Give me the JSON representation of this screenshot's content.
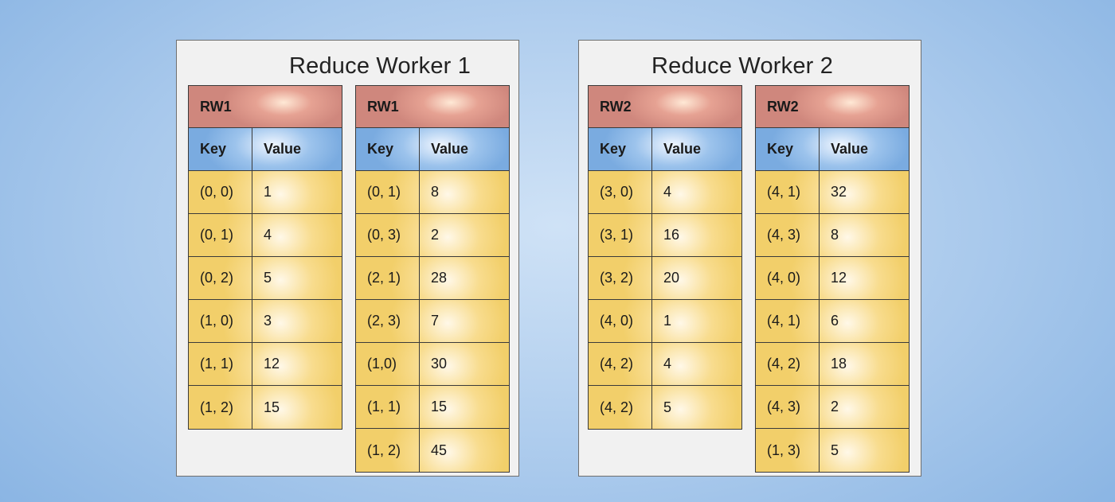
{
  "workers": [
    {
      "title": "Reduce Worker 1",
      "tables": [
        {
          "header": "RW1",
          "key_label": "Key",
          "value_label": "Value",
          "rows": [
            {
              "key": "(0, 0)",
              "value": "1"
            },
            {
              "key": "(0, 1)",
              "value": "4"
            },
            {
              "key": "(0, 2)",
              "value": "5"
            },
            {
              "key": "(1, 0)",
              "value": "3"
            },
            {
              "key": "(1, 1)",
              "value": "12"
            },
            {
              "key": "(1, 2)",
              "value": "15"
            }
          ]
        },
        {
          "header": "RW1",
          "key_label": "Key",
          "value_label": "Value",
          "rows": [
            {
              "key": "(0, 1)",
              "value": "8"
            },
            {
              "key": "(0, 3)",
              "value": "2"
            },
            {
              "key": "(2, 1)",
              "value": "28"
            },
            {
              "key": "(2, 3)",
              "value": "7"
            },
            {
              "key": "(1,0)",
              "value": "30"
            },
            {
              "key": "(1, 1)",
              "value": "15"
            },
            {
              "key": "(1, 2)",
              "value": "45"
            }
          ]
        }
      ]
    },
    {
      "title": "Reduce Worker 2",
      "tables": [
        {
          "header": "RW2",
          "key_label": "Key",
          "value_label": "Value",
          "rows": [
            {
              "key": "(3, 0)",
              "value": "4"
            },
            {
              "key": "(3, 1)",
              "value": "16"
            },
            {
              "key": "(3, 2)",
              "value": "20"
            },
            {
              "key": "(4, 0)",
              "value": "1"
            },
            {
              "key": "(4, 2)",
              "value": "4"
            },
            {
              "key": "(4, 2)",
              "value": "5"
            }
          ]
        },
        {
          "header": "RW2",
          "key_label": "Key",
          "value_label": "Value",
          "rows": [
            {
              "key": "(4, 1)",
              "value": "32"
            },
            {
              "key": "(4, 3)",
              "value": "8"
            },
            {
              "key": "(4, 0)",
              "value": "12"
            },
            {
              "key": "(4, 1)",
              "value": "6"
            },
            {
              "key": "(4, 2)",
              "value": "18"
            },
            {
              "key": "(4, 3)",
              "value": "2"
            },
            {
              "key": "(1, 3)",
              "value": "5"
            }
          ]
        }
      ]
    }
  ]
}
